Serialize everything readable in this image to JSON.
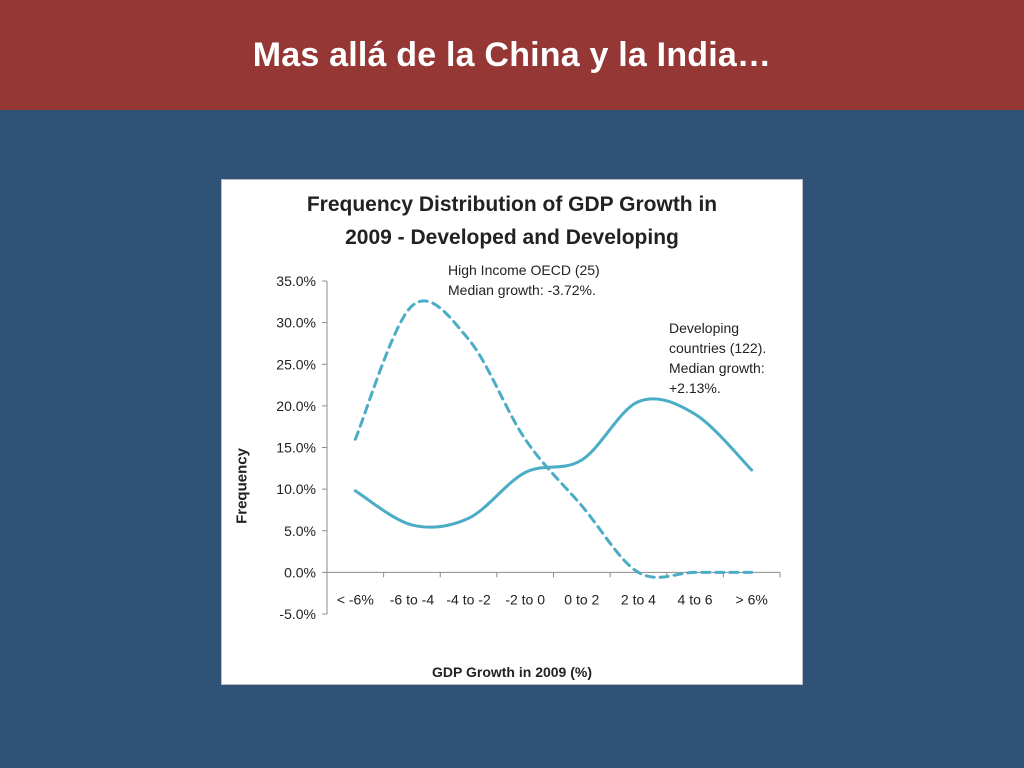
{
  "slide": {
    "title": "Mas allá de la China y la India…"
  },
  "colors": {
    "title_bar": "#953735",
    "background": "#2e5176",
    "series_line": "#4bacc6"
  },
  "chart_data": {
    "type": "line",
    "title": "Frequency Distribution of GDP Growth in\n2009 - Developed and Developing",
    "xlabel": "GDP Growth in 2009 (%)",
    "ylabel": "Frequency",
    "categories": [
      "< -6%",
      "-6 to -4",
      "-4 to -2",
      "-2 to 0",
      "0 to 2",
      "2 to 4",
      "4 to 6",
      "> 6%"
    ],
    "ylim": [
      -0.05,
      0.35
    ],
    "yticks": [
      "35.0%",
      "30.0%",
      "25.0%",
      "20.0%",
      "15.0%",
      "10.0%",
      "5.0%",
      "0.0%",
      "-5.0%"
    ],
    "ytick_values": [
      0.35,
      0.3,
      0.25,
      0.2,
      0.15,
      0.1,
      0.05,
      0.0,
      -0.05
    ],
    "grid": false,
    "legend": "none",
    "smooth": true,
    "series": [
      {
        "style": "dashed",
        "values": [
          0.16,
          0.32,
          0.28,
          0.16,
          0.08,
          0.0,
          0.0,
          0.0
        ]
      },
      {
        "style": "solid",
        "values": [
          0.098,
          0.057,
          0.065,
          0.12,
          0.135,
          0.205,
          0.19,
          0.123
        ]
      }
    ],
    "annotations": [
      "High Income OECD (25)\nMedian growth:   -3.72%.",
      "Developing\ncountries (122).\nMedian growth:\n+2.13%."
    ]
  }
}
